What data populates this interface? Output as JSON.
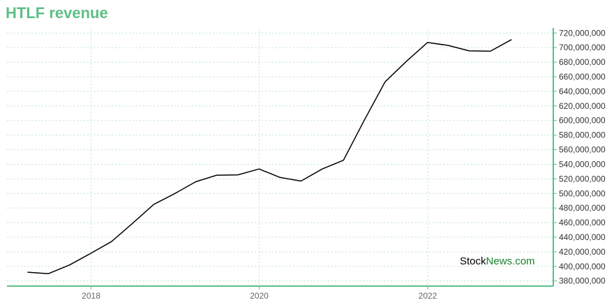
{
  "title": "HTLF revenue",
  "watermark": {
    "part1": "Stock",
    "part2": "News.com"
  },
  "colors": {
    "title": "#5cbf86",
    "axis": "#5cbf86",
    "grid": "#bfe3cf",
    "line": "#000000"
  },
  "chart_data": {
    "type": "line",
    "title": "HTLF revenue",
    "xlabel": "",
    "ylabel": "",
    "x": [
      "2017-03-31",
      "2017-06-30",
      "2017-09-30",
      "2017-12-31",
      "2018-03-31",
      "2018-06-30",
      "2018-09-30",
      "2018-12-31",
      "2019-03-31",
      "2019-06-30",
      "2019-09-30",
      "2019-12-31",
      "2020-03-31",
      "2020-06-30",
      "2020-09-30",
      "2020-12-31",
      "2021-03-31",
      "2021-06-30",
      "2021-09-30",
      "2021-12-31",
      "2022-03-31",
      "2022-06-30",
      "2022-09-30",
      "2022-12-31"
    ],
    "series": [
      {
        "values": [
          392000000,
          390000000,
          402000000,
          418000000,
          434000000,
          459000000,
          485000000,
          500000000,
          516000000,
          525000000,
          525500000,
          533500000,
          522000000,
          517000000,
          533500000,
          545500000,
          600000000,
          653000000,
          681000000,
          707000000,
          703000000,
          695500000,
          695000000,
          711000000
        ]
      }
    ],
    "xticks": [
      "2018",
      "2020",
      "2022"
    ],
    "xtick_values": [
      "2018-01-01",
      "2020-01-01",
      "2022-01-01"
    ],
    "yticks": [
      "380,000,000",
      "400,000,000",
      "420,000,000",
      "440,000,000",
      "460,000,000",
      "480,000,000",
      "500,000,000",
      "520,000,000",
      "540,000,000",
      "560,000,000",
      "580,000,000",
      "600,000,000",
      "620,000,000",
      "640,000,000",
      "660,000,000",
      "680,000,000",
      "700,000,000",
      "720,000,000"
    ],
    "ytick_values": [
      380000000,
      400000000,
      420000000,
      440000000,
      460000000,
      480000000,
      500000000,
      520000000,
      540000000,
      560000000,
      580000000,
      600000000,
      620000000,
      640000000,
      660000000,
      680000000,
      700000000,
      720000000
    ],
    "ylim": [
      373000000,
      727000000
    ],
    "xlim": [
      "2017-01-01",
      "2023-06-30"
    ],
    "grid": true,
    "y_axis_position": "right"
  }
}
